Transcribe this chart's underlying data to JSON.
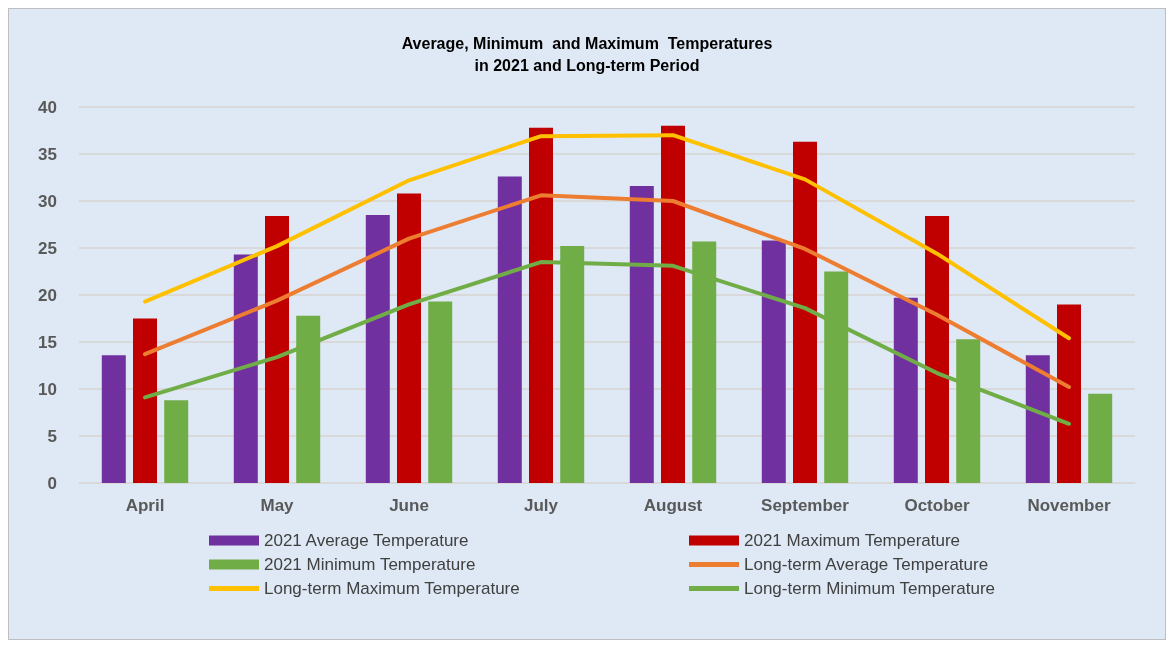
{
  "chart_data": {
    "type": "bar",
    "title": "Average, Minimum  and Maximum  Temperatures\nin 2021 and Long-term Period",
    "categories": [
      "April",
      "May",
      "June",
      "July",
      "August",
      "September",
      "October",
      "November"
    ],
    "series": [
      {
        "name": "2021 Average Temperature",
        "color": "#7030a0",
        "values": [
          13.6,
          24.3,
          28.5,
          32.6,
          31.6,
          25.8,
          19.7,
          13.6
        ]
      },
      {
        "name": "2021 Maximum Temperature",
        "color": "#c00000",
        "values": [
          17.5,
          28.4,
          30.8,
          37.8,
          38.0,
          36.3,
          28.4,
          19.0
        ]
      },
      {
        "name": "2021 Minimum Temperature",
        "color": "#70ad47",
        "values": [
          8.8,
          17.8,
          19.3,
          25.2,
          25.7,
          22.5,
          15.3,
          9.5
        ]
      },
      {
        "name": "Long-term Average Temperature",
        "type": "line",
        "color": "#ed7d31",
        "values": [
          13.7,
          19.4,
          26.0,
          30.6,
          30.0,
          24.9,
          17.9,
          10.2
        ]
      },
      {
        "name": "Long-term Maximum Temperature",
        "type": "line",
        "color": "#ffc000",
        "values": [
          19.3,
          25.2,
          32.2,
          36.9,
          37.0,
          32.3,
          24.4,
          15.4
        ]
      },
      {
        "name": "Long-term Minimum Temperature",
        "type": "line",
        "color": "#70ad47",
        "values": [
          9.1,
          13.4,
          19.0,
          23.5,
          23.1,
          18.6,
          11.7,
          6.3
        ]
      }
    ],
    "ylim": [
      0,
      40
    ],
    "yticks": [
      0,
      5,
      10,
      15,
      20,
      25,
      30,
      35,
      40
    ],
    "grid": "y",
    "legend": "bottom",
    "marker": "none",
    "line_style": "solid"
  }
}
